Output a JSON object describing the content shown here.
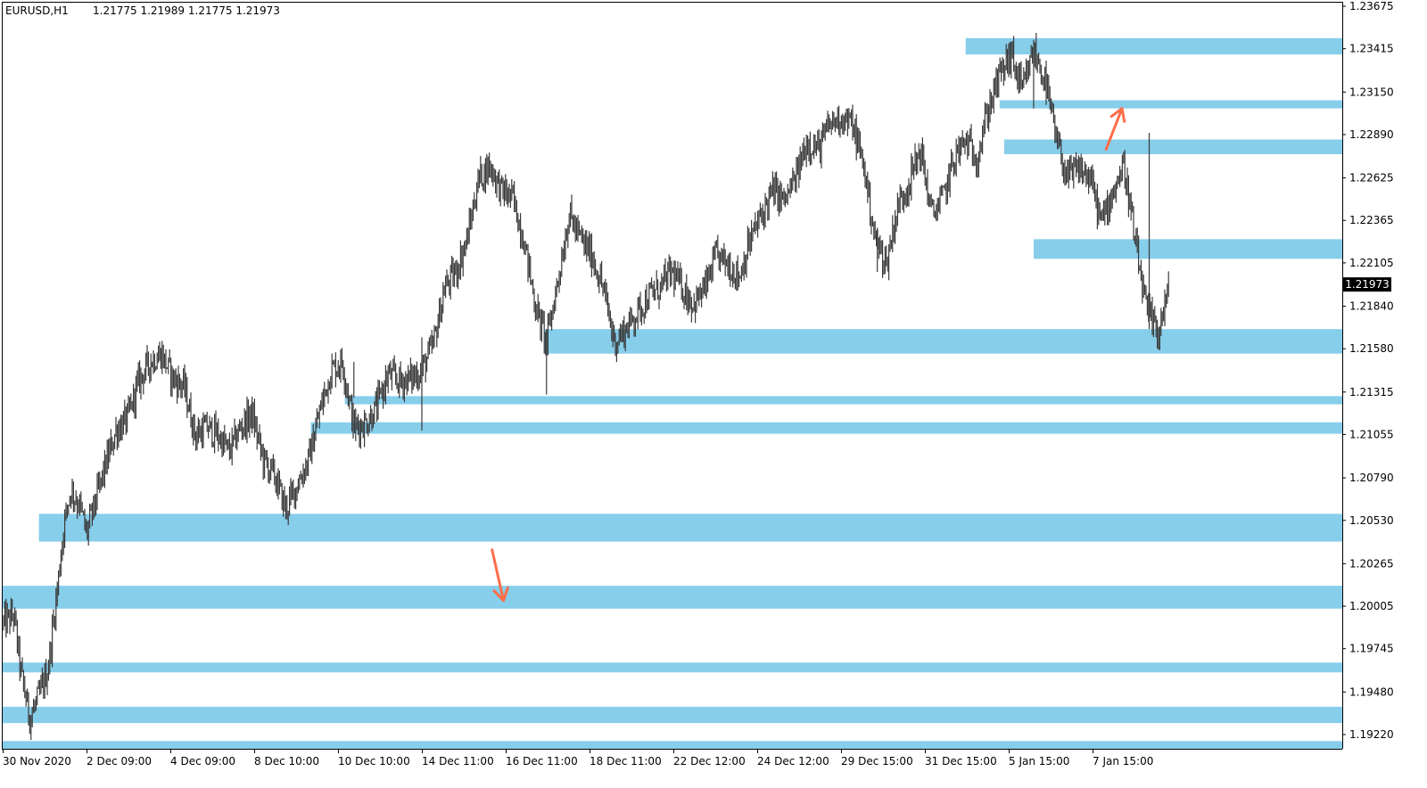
{
  "header": {
    "symbol_timeframe": "EURUSD,H1",
    "ohlc": "1.21775 1.21989 1.21775 1.21973"
  },
  "current_price_label": "1.21973",
  "colors": {
    "zone": "#87CEEB",
    "candle": "#3a3a3a",
    "arrow": "#FF6E4A",
    "price_tag": "#000000"
  },
  "chart_data": {
    "type": "line",
    "title": "EURUSD,H1",
    "y_axis_ticks": [
      "1.23675",
      "1.23415",
      "1.23150",
      "1.22890",
      "1.22625",
      "1.22365",
      "1.22105",
      "1.21840",
      "1.21580",
      "1.21315",
      "1.21055",
      "1.20790",
      "1.20530",
      "1.20265",
      "1.20005",
      "1.19745",
      "1.19480",
      "1.19220"
    ],
    "x_axis_ticks": [
      "30 Nov 2020",
      "2 Dec 09:00",
      "4 Dec 09:00",
      "8 Dec 10:00",
      "10 Dec 10:00",
      "14 Dec 11:00",
      "16 Dec 11:00",
      "18 Dec 11:00",
      "22 Dec 12:00",
      "24 Dec 12:00",
      "29 Dec 15:00",
      "31 Dec 15:00",
      "5 Jan 15:00",
      "7 Jan 15:00"
    ],
    "ylim": [
      1.1913,
      1.2372
    ],
    "grid": false,
    "current_price": 1.21973,
    "price_path": [
      {
        "x": 0.0,
        "y": 1.199
      },
      {
        "x": 0.5,
        "y": 1.1995
      },
      {
        "x": 0.8,
        "y": 1.196
      },
      {
        "x": 1.2,
        "y": 1.1932
      },
      {
        "x": 1.6,
        "y": 1.1945
      },
      {
        "x": 2.0,
        "y": 1.1962
      },
      {
        "x": 2.4,
        "y": 1.201
      },
      {
        "x": 2.7,
        "y": 1.205
      },
      {
        "x": 3.0,
        "y": 1.2072
      },
      {
        "x": 3.4,
        "y": 1.2062
      },
      {
        "x": 3.7,
        "y": 1.2045
      },
      {
        "x": 4.0,
        "y": 1.206
      },
      {
        "x": 4.5,
        "y": 1.2085
      },
      {
        "x": 5.0,
        "y": 1.2108
      },
      {
        "x": 5.5,
        "y": 1.2115
      },
      {
        "x": 6.0,
        "y": 1.2138
      },
      {
        "x": 6.5,
        "y": 1.215
      },
      {
        "x": 7.0,
        "y": 1.2155
      },
      {
        "x": 7.5,
        "y": 1.214
      },
      {
        "x": 8.0,
        "y": 1.2135
      },
      {
        "x": 8.5,
        "y": 1.2105
      },
      {
        "x": 9.0,
        "y": 1.211
      },
      {
        "x": 9.5,
        "y": 1.2105
      },
      {
        "x": 10.0,
        "y": 1.2095
      },
      {
        "x": 10.5,
        "y": 1.211
      },
      {
        "x": 11.0,
        "y": 1.2118
      },
      {
        "x": 11.5,
        "y": 1.209
      },
      {
        "x": 12.0,
        "y": 1.208
      },
      {
        "x": 12.5,
        "y": 1.206
      },
      {
        "x": 13.0,
        "y": 1.2075
      },
      {
        "x": 13.5,
        "y": 1.209
      },
      {
        "x": 14.0,
        "y": 1.212
      },
      {
        "x": 14.5,
        "y": 1.2145
      },
      {
        "x": 15.0,
        "y": 1.215
      },
      {
        "x": 15.5,
        "y": 1.211
      },
      {
        "x": 16.0,
        "y": 1.2112
      },
      {
        "x": 16.5,
        "y": 1.2122
      },
      {
        "x": 17.0,
        "y": 1.2142
      },
      {
        "x": 17.5,
        "y": 1.2138
      },
      {
        "x": 18.0,
        "y": 1.214
      },
      {
        "x": 18.5,
        "y": 1.2145
      },
      {
        "x": 19.0,
        "y": 1.216
      },
      {
        "x": 19.5,
        "y": 1.2195
      },
      {
        "x": 20.0,
        "y": 1.2205
      },
      {
        "x": 20.5,
        "y": 1.2225
      },
      {
        "x": 21.0,
        "y": 1.2262
      },
      {
        "x": 21.5,
        "y": 1.227
      },
      {
        "x": 22.0,
        "y": 1.2255
      },
      {
        "x": 22.5,
        "y": 1.225
      },
      {
        "x": 23.0,
        "y": 1.2225
      },
      {
        "x": 23.5,
        "y": 1.2185
      },
      {
        "x": 24.0,
        "y": 1.2162
      },
      {
        "x": 24.5,
        "y": 1.22
      },
      {
        "x": 25.0,
        "y": 1.224
      },
      {
        "x": 25.5,
        "y": 1.2225
      },
      {
        "x": 26.0,
        "y": 1.2215
      },
      {
        "x": 26.5,
        "y": 1.2195
      },
      {
        "x": 27.0,
        "y": 1.2162
      },
      {
        "x": 27.5,
        "y": 1.217
      },
      {
        "x": 28.0,
        "y": 1.218
      },
      {
        "x": 28.5,
        "y": 1.219
      },
      {
        "x": 29.0,
        "y": 1.2195
      },
      {
        "x": 29.5,
        "y": 1.2205
      },
      {
        "x": 30.0,
        "y": 1.2195
      },
      {
        "x": 30.5,
        "y": 1.2185
      },
      {
        "x": 31.0,
        "y": 1.2195
      },
      {
        "x": 31.5,
        "y": 1.2215
      },
      {
        "x": 32.0,
        "y": 1.221
      },
      {
        "x": 32.5,
        "y": 1.2202
      },
      {
        "x": 33.0,
        "y": 1.2225
      },
      {
        "x": 33.5,
        "y": 1.224
      },
      {
        "x": 34.0,
        "y": 1.2255
      },
      {
        "x": 34.5,
        "y": 1.2248
      },
      {
        "x": 35.0,
        "y": 1.2262
      },
      {
        "x": 35.5,
        "y": 1.2285
      },
      {
        "x": 36.0,
        "y": 1.228
      },
      {
        "x": 36.5,
        "y": 1.2295
      },
      {
        "x": 37.0,
        "y": 1.23
      },
      {
        "x": 37.5,
        "y": 1.2295
      },
      {
        "x": 38.0,
        "y": 1.227
      },
      {
        "x": 38.5,
        "y": 1.2225
      },
      {
        "x": 39.0,
        "y": 1.221
      },
      {
        "x": 39.5,
        "y": 1.2245
      },
      {
        "x": 40.0,
        "y": 1.226
      },
      {
        "x": 40.5,
        "y": 1.228
      },
      {
        "x": 41.0,
        "y": 1.224
      },
      {
        "x": 41.5,
        "y": 1.225
      },
      {
        "x": 42.0,
        "y": 1.2275
      },
      {
        "x": 42.5,
        "y": 1.2285
      },
      {
        "x": 43.0,
        "y": 1.2275
      },
      {
        "x": 43.5,
        "y": 1.2305
      },
      {
        "x": 44.0,
        "y": 1.2325
      },
      {
        "x": 44.5,
        "y": 1.2338
      },
      {
        "x": 45.0,
        "y": 1.2315
      },
      {
        "x": 45.5,
        "y": 1.234
      },
      {
        "x": 46.0,
        "y": 1.2322
      },
      {
        "x": 46.5,
        "y": 1.2285
      },
      {
        "x": 47.0,
        "y": 1.2262
      },
      {
        "x": 47.5,
        "y": 1.2268
      },
      {
        "x": 48.0,
        "y": 1.2262
      },
      {
        "x": 48.5,
        "y": 1.2235
      },
      {
        "x": 49.0,
        "y": 1.2255
      },
      {
        "x": 49.5,
        "y": 1.227
      },
      {
        "x": 50.0,
        "y": 1.222
      },
      {
        "x": 50.5,
        "y": 1.218
      },
      {
        "x": 51.0,
        "y": 1.2168
      },
      {
        "x": 51.5,
        "y": 1.2197
      }
    ],
    "price_path_x_max": 51.5,
    "spikes": [
      {
        "x": 15.5,
        "low": 1.2128,
        "high": 1.215
      },
      {
        "x": 18.5,
        "low": 1.2108,
        "high": 1.2165
      },
      {
        "x": 24.0,
        "low": 1.213,
        "high": 1.217
      },
      {
        "x": 38.6,
        "low": 1.2205,
        "high": 1.2232
      },
      {
        "x": 45.5,
        "low": 1.2305,
        "high": 1.2347
      },
      {
        "x": 50.6,
        "low": 1.217,
        "high": 1.229
      }
    ],
    "zones": [
      {
        "from_x": 42.5,
        "low": 1.2338,
        "high": 1.2348
      },
      {
        "from_x": 44.0,
        "low": 1.2305,
        "high": 1.231
      },
      {
        "from_x": 44.2,
        "low": 1.2277,
        "high": 1.2286
      },
      {
        "from_x": 45.5,
        "low": 1.2213,
        "high": 1.2225
      },
      {
        "from_x": 23.9,
        "low": 1.2155,
        "high": 1.217
      },
      {
        "from_x": 15.1,
        "low": 1.2124,
        "high": 1.2129
      },
      {
        "from_x": 13.6,
        "low": 1.2106,
        "high": 1.2113
      },
      {
        "from_x": 1.6,
        "low": 1.204,
        "high": 1.2057
      },
      {
        "from_x": 0.0,
        "low": 1.1999,
        "high": 1.2013
      },
      {
        "from_x": 0.0,
        "low": 1.196,
        "high": 1.1966
      },
      {
        "from_x": 0.0,
        "low": 1.1929,
        "high": 1.1939
      },
      {
        "from_x": 0.0,
        "low": 1.1913,
        "high": 1.1918
      }
    ],
    "arrows": [
      {
        "direction": "up",
        "from": {
          "x": 48.7,
          "y": 1.228
        },
        "to": {
          "x": 49.4,
          "y": 1.2305
        }
      },
      {
        "direction": "down",
        "from": {
          "x": 21.6,
          "y": 1.2035
        },
        "to": {
          "x": 22.1,
          "y": 1.2004
        }
      }
    ]
  }
}
